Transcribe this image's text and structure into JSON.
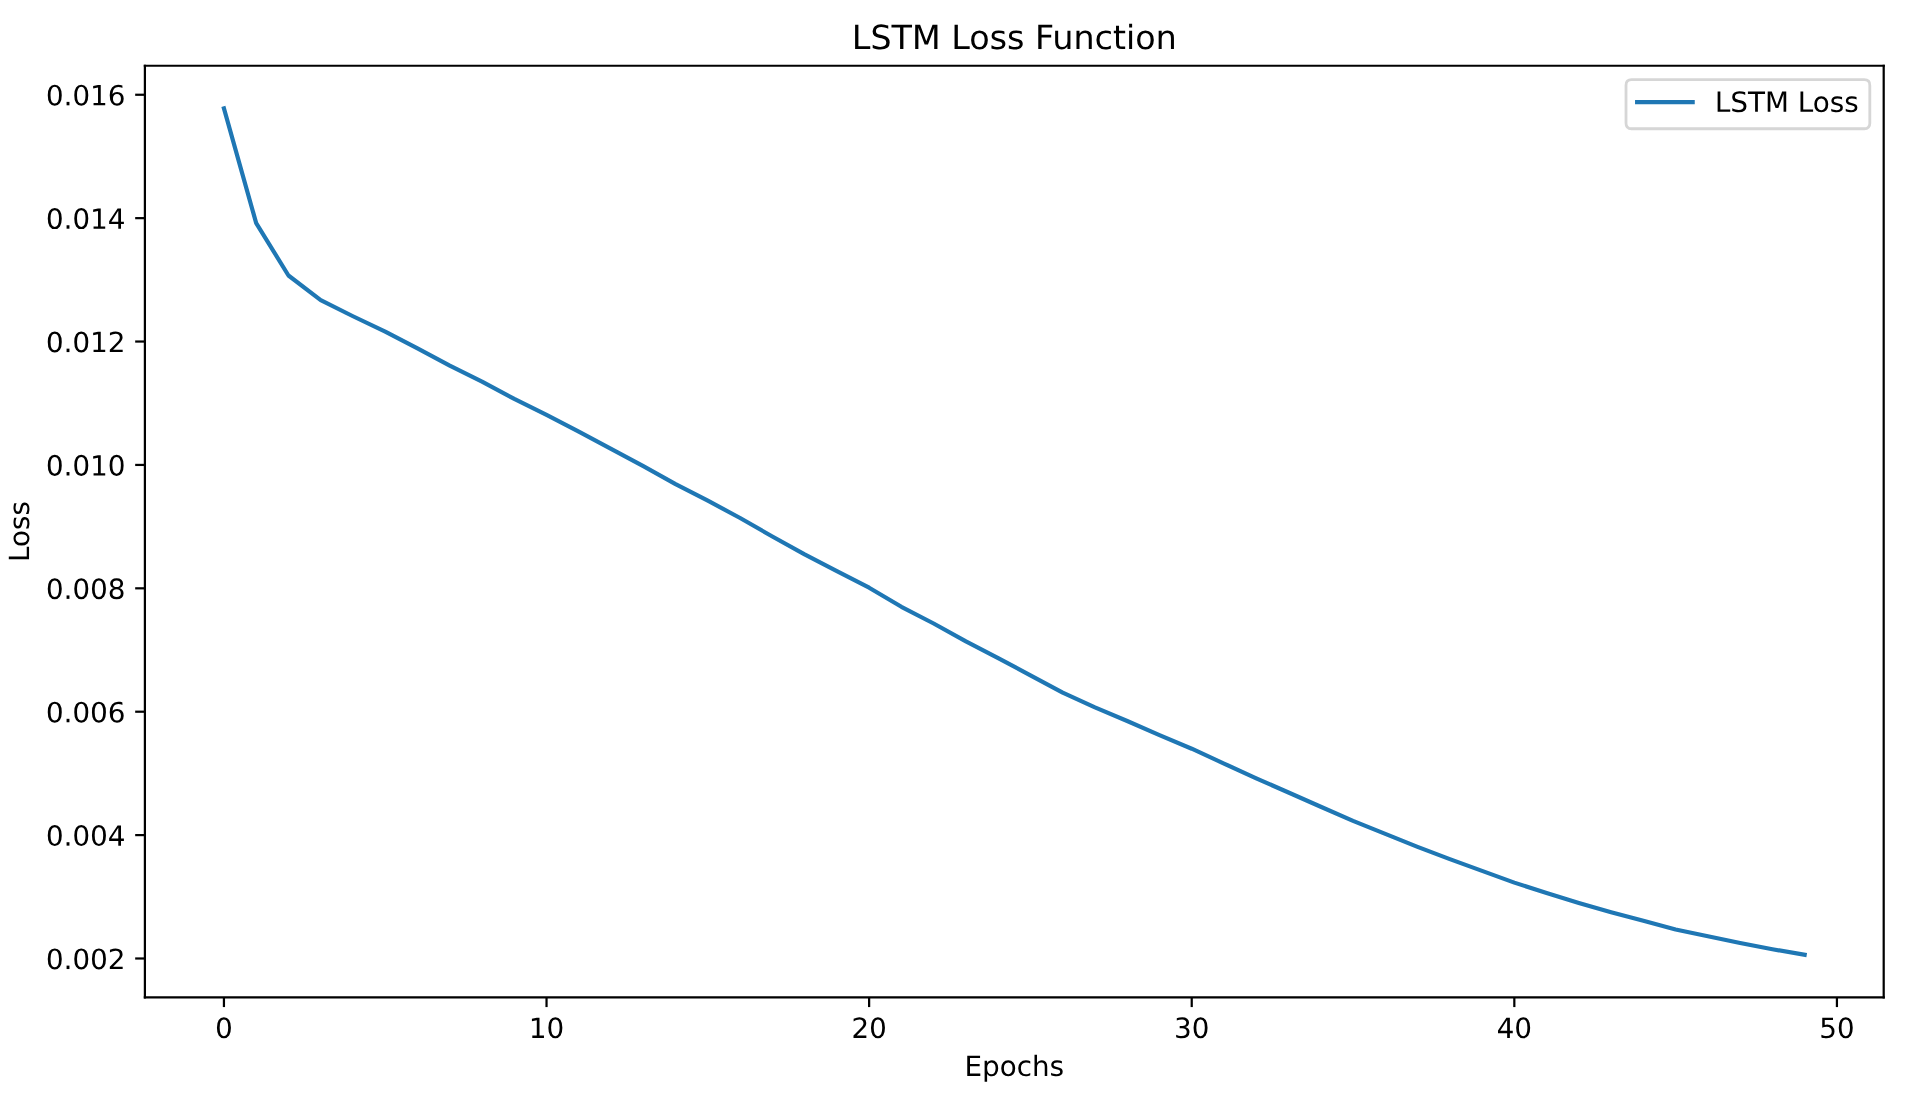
{
  "chart_data": {
    "type": "line",
    "title": "LSTM Loss Function",
    "xlabel": "Epochs",
    "ylabel": "Loss",
    "x": [
      0,
      1,
      2,
      3,
      4,
      5,
      6,
      7,
      8,
      9,
      10,
      11,
      12,
      13,
      14,
      15,
      16,
      17,
      18,
      19,
      20,
      21,
      22,
      23,
      24,
      25,
      26,
      27,
      28,
      29,
      30,
      31,
      32,
      33,
      34,
      35,
      36,
      37,
      38,
      39,
      40,
      41,
      42,
      43,
      44,
      45,
      46,
      47,
      48,
      49
    ],
    "series": [
      {
        "name": "LSTM Loss",
        "color": "#1f77b4",
        "values": [
          0.01578,
          0.01392,
          0.01307,
          0.01267,
          0.01241,
          0.01216,
          0.01189,
          0.01161,
          0.01135,
          0.01107,
          0.01081,
          0.01054,
          0.01026,
          0.00998,
          0.00969,
          0.00942,
          0.00914,
          0.00884,
          0.00855,
          0.00828,
          0.00801,
          0.0077,
          0.00743,
          0.00714,
          0.00687,
          0.00659,
          0.00631,
          0.00607,
          0.00585,
          0.00562,
          0.0054,
          0.00516,
          0.00492,
          0.00469,
          0.00446,
          0.00423,
          0.00402,
          0.00381,
          0.00361,
          0.00342,
          0.00323,
          0.00306,
          0.0029,
          0.00275,
          0.00261,
          0.00247,
          0.00236,
          0.00225,
          0.00215,
          0.00206
        ]
      }
    ],
    "xlim": [
      -2.45,
      51.45
    ],
    "ylim": [
      0.00137,
      0.01647
    ],
    "xticks": [
      0,
      10,
      20,
      30,
      40,
      50
    ],
    "yticks": [
      {
        "value": 0.002,
        "label": "0.002"
      },
      {
        "value": 0.004,
        "label": "0.004"
      },
      {
        "value": 0.006,
        "label": "0.006"
      },
      {
        "value": 0.008,
        "label": "0.008"
      },
      {
        "value": 0.01,
        "label": "0.010"
      },
      {
        "value": 0.012,
        "label": "0.012"
      },
      {
        "value": 0.014,
        "label": "0.014"
      },
      {
        "value": 0.016,
        "label": "0.016"
      }
    ],
    "legend": "top right",
    "grid": false,
    "marker": "none",
    "line_style": "solid"
  }
}
